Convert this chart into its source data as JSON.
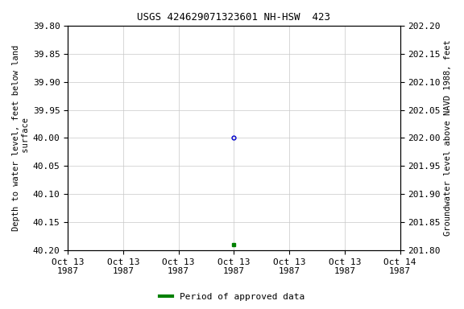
{
  "title": "USGS 424629071323601 NH-HSW  423",
  "title_fontsize": 9,
  "ylabel_left": "Depth to water level, feet below land\n surface",
  "ylabel_right": "Groundwater level above NAVD 1988, feet",
  "ylim_left": [
    40.2,
    39.8
  ],
  "ylim_right": [
    201.8,
    202.2
  ],
  "yticks_left": [
    39.8,
    39.85,
    39.9,
    39.95,
    40.0,
    40.05,
    40.1,
    40.15,
    40.2
  ],
  "yticks_right": [
    202.2,
    202.15,
    202.1,
    202.05,
    202.0,
    201.95,
    201.9,
    201.85,
    201.8
  ],
  "data_point_open": {
    "x": "1987-10-13 12:00:00",
    "y": 40.0,
    "color": "#0000cc",
    "marker": "o",
    "markersize": 3.5,
    "fillstyle": "none"
  },
  "data_point_filled": {
    "x": "1987-10-13 12:00:00",
    "y": 40.19,
    "color": "#008000",
    "marker": "s",
    "markersize": 2.5
  },
  "xlim_start": "1987-10-13 00:00:00",
  "xlim_end": "1987-10-14 00:00:00",
  "xtick_dates": [
    "1987-10-13 00:00:00",
    "1987-10-13 04:00:00",
    "1987-10-13 08:00:00",
    "1987-10-13 12:00:00",
    "1987-10-13 16:00:00",
    "1987-10-13 20:00:00",
    "1987-10-14 00:00:00"
  ],
  "xtick_labels": [
    "Oct 13\n1987",
    "Oct 13\n1987",
    "Oct 13\n1987",
    "Oct 13\n1987",
    "Oct 13\n1987",
    "Oct 13\n1987",
    "Oct 14\n1987"
  ],
  "legend_label": "Period of approved data",
  "legend_color": "#008000",
  "background_color": "#ffffff",
  "grid_color": "#c8c8c8",
  "tick_fontsize": 8,
  "label_fontsize": 7.5,
  "legend_fontsize": 8
}
